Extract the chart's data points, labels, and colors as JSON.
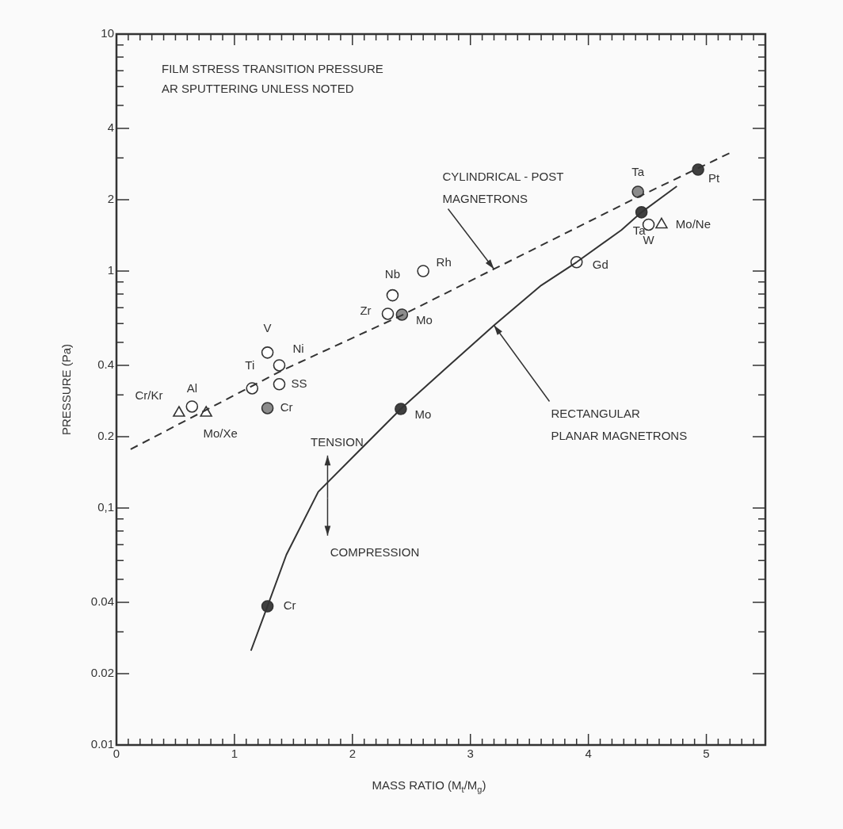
{
  "chart_data": {
    "type": "scatter",
    "title": "FILM STRESS TRANSITION PRESSURE",
    "subtitle": "AR SPUTTERING UNLESS NOTED",
    "xlabel": "MASS RATIO (M$_{t}$/M$_{g}$)",
    "ylabel": "PRESSURE (Pa)",
    "log": "y",
    "xlim": [
      0,
      5.5
    ],
    "ylim": [
      0.01,
      10
    ],
    "xticks": [
      0,
      {
        "value": 0.1,
        "label": null
      },
      {
        "value": 0.2,
        "label": null
      },
      {
        "value": 0.3,
        "label": null
      },
      {
        "value": 0.4,
        "label": null
      },
      {
        "value": 0.5,
        "label": null
      },
      {
        "value": 0.6,
        "label": null
      },
      {
        "value": 0.7,
        "label": null
      },
      {
        "value": 0.8,
        "label": null
      },
      {
        "value": 0.9,
        "label": null
      },
      1,
      {
        "value": 1.1,
        "label": null
      },
      {
        "value": 1.2,
        "label": null
      },
      {
        "value": 1.3,
        "label": null
      },
      {
        "value": 1.4,
        "label": null
      },
      {
        "value": 1.5,
        "label": null
      },
      {
        "value": 1.6,
        "label": null
      },
      {
        "value": 1.7,
        "label": null
      },
      {
        "value": 1.8,
        "label": null
      },
      {
        "value": 1.9,
        "label": null
      },
      2,
      {
        "value": 2.1,
        "label": null
      },
      {
        "value": 2.2,
        "label": null
      },
      {
        "value": 2.3,
        "label": null
      },
      {
        "value": 2.4,
        "label": null
      },
      {
        "value": 2.5,
        "label": null
      },
      {
        "value": 2.6,
        "label": null
      },
      {
        "value": 2.7,
        "label": null
      },
      {
        "value": 2.8,
        "label": null
      },
      {
        "value": 2.9,
        "label": null
      },
      3,
      {
        "value": 3.1,
        "label": null
      },
      {
        "value": 3.2,
        "label": null
      },
      {
        "value": 3.3,
        "label": null
      },
      {
        "value": 3.4,
        "label": null
      },
      {
        "value": 3.5,
        "label": null
      },
      {
        "value": 3.6,
        "label": null
      },
      {
        "value": 3.7,
        "label": null
      },
      {
        "value": 3.8,
        "label": null
      },
      {
        "value": 3.9,
        "label": null
      },
      4,
      {
        "value": 4.1,
        "label": null
      },
      {
        "value": 4.2,
        "label": null
      },
      {
        "value": 4.3,
        "label": null
      },
      {
        "value": 4.4,
        "label": null
      },
      {
        "value": 4.5,
        "label": null
      },
      {
        "value": 4.6,
        "label": null
      },
      {
        "value": 4.7,
        "label": null
      },
      {
        "value": 4.8,
        "label": null
      },
      {
        "value": 4.9,
        "label": null
      },
      5,
      {
        "value": 5.1,
        "label": null
      },
      {
        "value": 5.2,
        "label": null
      },
      {
        "value": 5.3,
        "label": null
      },
      {
        "value": 5.4,
        "label": null
      }
    ],
    "yticks": [
      0.01,
      0.02,
      {
        "value": 0.03,
        "label": null
      },
      0.04,
      {
        "value": 0.05,
        "label": null
      },
      {
        "value": 0.06,
        "label": null
      },
      {
        "value": 0.07,
        "label": null
      },
      {
        "value": 0.08,
        "label": null
      },
      {
        "value": 0.09,
        "label": null
      },
      {
        "value": 0.1,
        "label": "0,1"
      },
      0.2,
      {
        "value": 0.3,
        "label": null
      },
      0.4,
      {
        "value": 0.5,
        "label": null
      },
      {
        "value": 0.6,
        "label": null
      },
      {
        "value": 0.7,
        "label": null
      },
      {
        "value": 0.8,
        "label": null
      },
      {
        "value": 0.9,
        "label": null
      },
      1,
      2,
      {
        "value": 3,
        "label": null
      },
      4,
      {
        "value": 5,
        "label": null
      },
      {
        "value": 6,
        "label": null
      },
      {
        "value": 7,
        "label": null
      },
      {
        "value": 8,
        "label": null
      },
      {
        "value": 9,
        "label": null
      },
      10
    ],
    "series": [
      {
        "type": "line",
        "color": "#333333",
        "line_style": "dashed",
        "marker": "none",
        "x": [
          0.12,
          1.4,
          2.4,
          3.2,
          4.4,
          5.2
        ],
        "values": [
          0.177,
          0.38,
          0.644,
          1.02,
          2.03,
          3.15
        ]
      },
      {
        "type": "line",
        "color": "#333333",
        "line_style": "solid",
        "marker": "none",
        "x": [
          1.14,
          1.28,
          1.44,
          1.71,
          2.05,
          2.41,
          2.79,
          3.2,
          3.6,
          3.9,
          4.28,
          4.45,
          4.75
        ],
        "values": [
          0.025,
          0.0385,
          0.0635,
          0.117,
          0.173,
          0.262,
          0.388,
          0.59,
          0.87,
          1.09,
          1.49,
          1.77,
          2.28
        ]
      },
      {
        "type": "scatter",
        "color": "#ffffff",
        "marker": "circle",
        "x": [
          0.64,
          1.15,
          1.28,
          1.38,
          1.38,
          2.34,
          2.3,
          2.6,
          3.9,
          4.51
        ],
        "values": [
          0.268,
          0.32,
          0.453,
          0.4,
          0.333,
          0.79,
          0.66,
          1.0,
          1.09,
          1.57
        ],
        "value_labels": [
          "Al",
          "Ti",
          "V",
          "Ni",
          "SS",
          "Nb",
          "Zr",
          "Rh",
          "Gd",
          "W"
        ]
      },
      {
        "type": "scatter",
        "color": "#8c8c8c",
        "marker": "circle",
        "x": [
          1.28,
          2.42,
          4.42
        ],
        "values": [
          0.264,
          0.655,
          2.16
        ],
        "value_labels": [
          "Cr",
          "Mo",
          "Ta"
        ]
      },
      {
        "type": "scatter",
        "color": "#404040",
        "marker": "circle",
        "x": [
          1.28,
          2.41,
          4.45,
          4.93
        ],
        "values": [
          0.0385,
          0.262,
          1.77,
          2.68
        ],
        "value_labels": [
          "Cr",
          "Mo",
          "Ta",
          "Pt"
        ]
      },
      {
        "type": "scatter",
        "color": "#ffffff",
        "marker": "triangle",
        "x": [
          0.53,
          0.76,
          4.62
        ],
        "values": [
          0.252,
          0.252,
          1.57
        ],
        "value_labels": [
          "Cr/Kr",
          "Mo/Xe",
          "Mo/Ne"
        ]
      }
    ],
    "annotations": [
      {
        "text": "CYLINDRICAL - POST\nMAGNETRONS",
        "x": 3.2,
        "y": 1.02
      },
      {
        "text": "RECTANGULAR\nPLANAR MAGNETRONS",
        "x": 3.2,
        "y": 0.59
      },
      "TENSION",
      "COMPRESSION"
    ]
  }
}
